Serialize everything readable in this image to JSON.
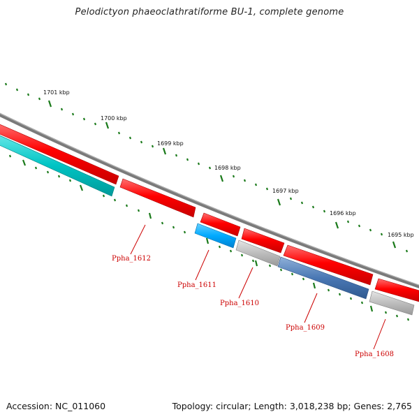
{
  "title": "Pelodictyon phaeoclathratiforme BU-1, complete genome",
  "accession_text": "Accession: NC_011060",
  "summary_text": "Topology: circular; Length: 3,018,238 bp; Genes: 2,765",
  "colors": {
    "backbone": "#7a7a7a",
    "forward_gene": "#ff0000",
    "rrna_like": "#00c8c8",
    "blue_gene": "#00aaff",
    "steel_gene": "#4a78b4",
    "gray_gene": "#b8b8b8",
    "tick": "#1a7a1a",
    "label": "#cc0000"
  },
  "scale_labels": [
    "1701 kbp",
    "1700 kbp",
    "1699 kbp",
    "1698 kbp",
    "1697 kbp",
    "1696 kbp",
    "1695 kbp"
  ],
  "gene_labels": [
    "Ppha_1612",
    "Ppha_1611",
    "Ppha_1610",
    "Ppha_1609",
    "Ppha_1608"
  ]
}
